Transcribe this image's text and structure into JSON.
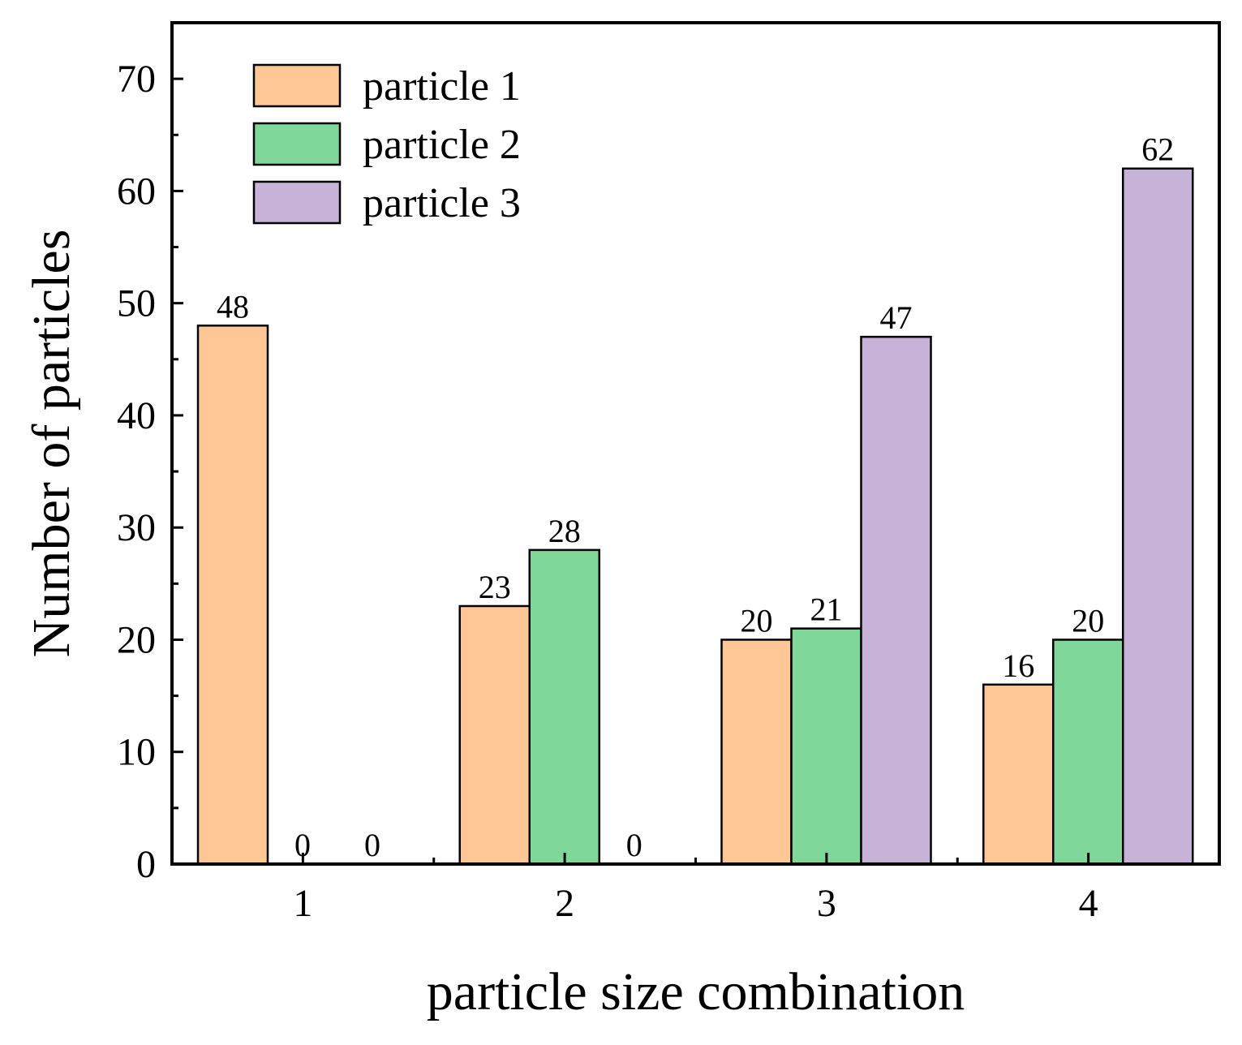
{
  "chart_data": {
    "type": "bar",
    "title": "",
    "xlabel": "particle size combination",
    "ylabel": "Number of particles",
    "categories": [
      "1",
      "2",
      "3",
      "4"
    ],
    "ylim": [
      0,
      75
    ],
    "yticks": [
      0,
      10,
      20,
      30,
      40,
      50,
      60,
      70
    ],
    "grid": false,
    "legend_position": "top-left",
    "series": [
      {
        "name": "particle 1",
        "color": "#FFC796",
        "values": [
          48,
          23,
          20,
          16
        ]
      },
      {
        "name": "particle 2",
        "color": "#7FD89A",
        "values": [
          0,
          28,
          21,
          20
        ]
      },
      {
        "name": "particle 3",
        "color": "#C8B3D8",
        "values": [
          0,
          0,
          47,
          62
        ]
      }
    ]
  }
}
